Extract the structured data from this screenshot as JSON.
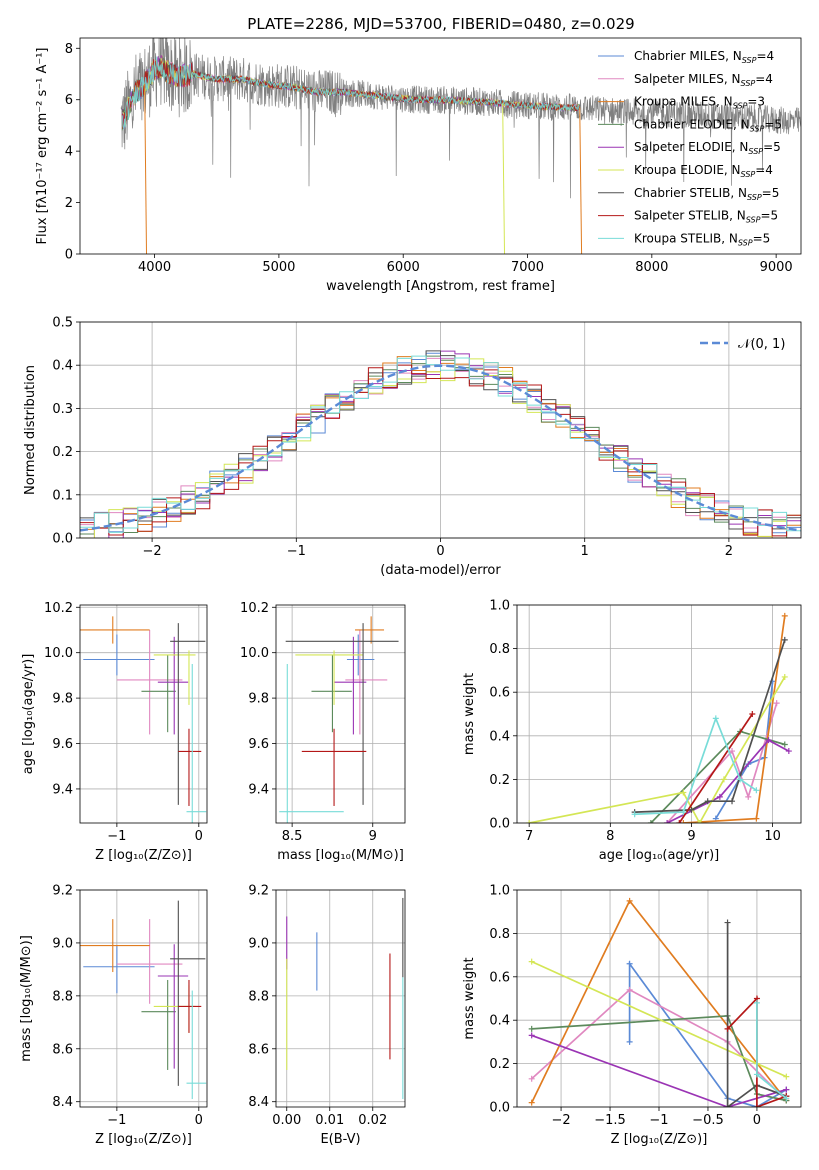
{
  "figure_title": "PLATE=2286, MJD=53700, FIBERID=0480, z=0.029",
  "chart_data": [
    {
      "id": "spectrum",
      "type": "line",
      "xlabel": "wavelength [Angstrom, rest frame]",
      "ylabel": "Flux [fλ10⁻¹⁷ erg cm⁻² s⁻¹ A⁻¹]",
      "xlim": [
        3400,
        9200
      ],
      "ylim": [
        0,
        8.4
      ],
      "xticks": [
        4000,
        5000,
        6000,
        7000,
        8000,
        9000
      ],
      "yticks": [
        0,
        2,
        4,
        6,
        8
      ],
      "grid": false,
      "legend_position": "top-right",
      "data_series_color": "#808080",
      "series": [
        {
          "name": "Chabrier MILES, N_SSP=4",
          "legend": "Chabrier MILES, N",
          "nssp": "4",
          "color": "#5b8ad6"
        },
        {
          "name": "Salpeter MILES, N_SSP=4",
          "legend": "Salpeter MILES, N",
          "nssp": "4",
          "color": "#e088c0"
        },
        {
          "name": "Kroupa MILES, N_SSP=3",
          "legend": "Kroupa MILES, N",
          "nssp": "3",
          "color": "#e07c20"
        },
        {
          "name": "Chabrier ELODIE, N_SSP=5",
          "legend": "Chabrier ELODIE, N",
          "nssp": "5",
          "color": "#5c8a5c"
        },
        {
          "name": "Salpeter ELODIE, N_SSP=5",
          "legend": "Salpeter ELODIE, N",
          "nssp": "5",
          "color": "#9a34b4"
        },
        {
          "name": "Kroupa ELODIE, N_SSP=4",
          "legend": "Kroupa ELODIE, N",
          "nssp": "4",
          "color": "#d4e655"
        },
        {
          "name": "Chabrier STELIB, N_SSP=5",
          "legend": "Chabrier STELIB, N",
          "nssp": "5",
          "color": "#505050"
        },
        {
          "name": "Salpeter STELIB, N_SSP=5",
          "legend": "Salpeter STELIB, N",
          "nssp": "5",
          "color": "#b41818"
        },
        {
          "name": "Kroupa STELIB, N_SSP=5",
          "legend": "Kroupa STELIB, N",
          "nssp": "5",
          "color": "#78dcd8"
        }
      ],
      "continuum": {
        "wavelength": [
          3750,
          3800,
          3850,
          3900,
          3950,
          4000,
          4050,
          4100,
          4200,
          4300,
          4400,
          4500,
          4700,
          4900,
          5100,
          5300,
          5500,
          5700,
          5900,
          6100,
          6300,
          6500,
          6700,
          6900,
          7100,
          7300,
          7420
        ],
        "flux": [
          5.2,
          5.8,
          6.3,
          6.5,
          6.8,
          7.2,
          7.3,
          7.1,
          6.9,
          7.0,
          6.9,
          6.8,
          6.8,
          6.6,
          6.5,
          6.3,
          6.3,
          6.2,
          6.1,
          6.0,
          6.0,
          5.95,
          5.9,
          5.8,
          5.75,
          5.7,
          5.7
        ]
      },
      "data_extension": {
        "wavelength": [
          7420,
          7600,
          7800,
          8000,
          8200,
          8400,
          8600,
          8800,
          9000,
          9200
        ],
        "flux": [
          5.75,
          5.6,
          5.5,
          5.5,
          5.45,
          5.4,
          5.35,
          5.3,
          5.2,
          5.15
        ]
      },
      "model_dips": [
        {
          "series": "Kroupa MILES, N_SSP=3",
          "x": 3920,
          "y": 0
        },
        {
          "series": "Kroupa ELODIE, N_SSP=4",
          "x": 6800,
          "y": 0
        },
        {
          "series": "Kroupa MILES, N_SSP=3",
          "x": 7420,
          "y": 0
        }
      ]
    },
    {
      "id": "residuals",
      "type": "step",
      "xlabel": "(data-model)/error",
      "ylabel": "Normed distribution",
      "xlim": [
        -2.5,
        2.5
      ],
      "ylim": [
        0,
        0.5
      ],
      "xticks": [
        -2,
        -1,
        0,
        1,
        2
      ],
      "yticks": [
        0.0,
        0.1,
        0.2,
        0.3,
        0.4,
        0.5
      ],
      "grid": true,
      "bin_width": 0.1,
      "legend_position": "top-right",
      "reference_curve": {
        "name": "N(0,1)",
        "legend_math": "𝒩(0, 1)",
        "type": "gaussian",
        "mean": 0,
        "sigma": 1,
        "color": "#5b8ad6"
      }
    },
    {
      "id": "age-vs-Z",
      "type": "errorbar",
      "xlabel": "Z [log₁₀(Z/Z⊙)]",
      "ylabel": "age  [log₁₀(age/yr)]",
      "xlim": [
        -1.45,
        0.1
      ],
      "ylim": [
        9.25,
        10.21
      ],
      "xticks": [
        -1,
        0
      ],
      "yticks": [
        9.4,
        9.6,
        9.8,
        10.0,
        10.2
      ],
      "grid": true,
      "points": [
        {
          "x": -1.0,
          "y": 9.97,
          "xerr": [
            0.41,
            0.46
          ],
          "yerr": [
            0.07,
            0.11
          ],
          "color": "#5b8ad6"
        },
        {
          "x": -0.6,
          "y": 9.88,
          "xerr": [
            0.4,
            0.4
          ],
          "yerr": [
            0.24,
            0.22
          ],
          "color": "#e088c0"
        },
        {
          "x": -1.05,
          "y": 10.1,
          "xerr": [
            0.4,
            0.45
          ],
          "yerr": [
            0.06,
            0.06
          ],
          "color": "#e07c20"
        },
        {
          "x": -0.38,
          "y": 9.83,
          "xerr": [
            0.32,
            0.1
          ],
          "yerr": [
            0.18,
            0.16
          ],
          "color": "#5c8a5c"
        },
        {
          "x": -0.3,
          "y": 9.87,
          "xerr": [
            0.2,
            0.17
          ],
          "yerr": [
            0.23,
            0.2
          ],
          "color": "#9a34b4"
        },
        {
          "x": -0.12,
          "y": 9.99,
          "xerr": [
            0.43,
            0.08
          ],
          "yerr": [
            0.22,
            0.02
          ],
          "color": "#d4e655"
        },
        {
          "x": -0.25,
          "y": 10.05,
          "xerr": [
            0.1,
            0.33
          ],
          "yerr": [
            0.72,
            0.08
          ],
          "color": "#505050"
        },
        {
          "x": -0.12,
          "y": 9.565,
          "xerr": [
            0.13,
            0.15
          ],
          "yerr": [
            0.24,
            0.1
          ],
          "color": "#b41818"
        },
        {
          "x": -0.08,
          "y": 9.3,
          "xerr": [
            0.07,
            0.17
          ],
          "yerr": [
            0.05,
            0.65
          ],
          "color": "#78dcd8"
        }
      ]
    },
    {
      "id": "age-vs-mass",
      "type": "errorbar",
      "xlabel": "mass [log₁₀(M/M⊙)]",
      "ylabel": "",
      "xlim": [
        8.4,
        9.2
      ],
      "ylim": [
        9.25,
        10.21
      ],
      "xticks": [
        8.5,
        9.0
      ],
      "yticks": [
        9.4,
        9.6,
        9.8,
        10.0,
        10.2
      ],
      "grid": true,
      "points": [
        {
          "x": 8.91,
          "y": 9.97,
          "xerr": [
            0.07,
            0.1
          ],
          "yerr": [
            0.07,
            0.11
          ],
          "color": "#5b8ad6"
        },
        {
          "x": 8.92,
          "y": 9.88,
          "xerr": [
            0.09,
            0.17
          ],
          "yerr": [
            0.24,
            0.22
          ],
          "color": "#e088c0"
        },
        {
          "x": 8.99,
          "y": 10.1,
          "xerr": [
            0.1,
            0.08
          ],
          "yerr": [
            0.06,
            0.06
          ],
          "color": "#e07c20"
        },
        {
          "x": 8.75,
          "y": 9.83,
          "xerr": [
            0.13,
            0.12
          ],
          "yerr": [
            0.18,
            0.16
          ],
          "color": "#5c8a5c"
        },
        {
          "x": 8.88,
          "y": 9.87,
          "xerr": [
            0.12,
            0.08
          ],
          "yerr": [
            0.23,
            0.2
          ],
          "color": "#9a34b4"
        },
        {
          "x": 8.76,
          "y": 9.99,
          "xerr": [
            0.24,
            0.18
          ],
          "yerr": [
            0.22,
            0.02
          ],
          "color": "#d4e655"
        },
        {
          "x": 8.94,
          "y": 10.05,
          "xerr": [
            0.48,
            0.22
          ],
          "yerr": [
            0.72,
            0.08
          ],
          "color": "#505050"
        },
        {
          "x": 8.76,
          "y": 9.565,
          "xerr": [
            0.2,
            0.2
          ],
          "yerr": [
            0.24,
            0.1
          ],
          "color": "#b41818"
        },
        {
          "x": 8.47,
          "y": 9.3,
          "xerr": [
            0.05,
            0.35
          ],
          "yerr": [
            0.05,
            0.65
          ],
          "color": "#78dcd8"
        }
      ]
    },
    {
      "id": "weight-vs-age",
      "type": "line",
      "xlabel": "age  [log₁₀(age/yr)]",
      "ylabel": "mass weight",
      "xlim": [
        6.85,
        10.35
      ],
      "ylim": [
        0,
        1.0
      ],
      "xticks": [
        7,
        8,
        9,
        10
      ],
      "yticks": [
        0.0,
        0.2,
        0.4,
        0.6,
        0.8,
        1.0
      ],
      "grid": true,
      "series": [
        {
          "color": "#5b8ad6",
          "x": [
            9.3,
            9.7,
            9.9,
            10.0
          ],
          "y": [
            0.02,
            0.27,
            0.3,
            0.65
          ]
        },
        {
          "color": "#e088c0",
          "x": [
            8.7,
            9.5,
            9.7,
            10.05
          ],
          "y": [
            0.0,
            0.33,
            0.12,
            0.55
          ]
        },
        {
          "color": "#e07c20",
          "x": [
            8.9,
            9.8,
            10.15
          ],
          "y": [
            0.0,
            0.02,
            0.95
          ]
        },
        {
          "color": "#5c8a5c",
          "x": [
            8.5,
            9.6,
            10.15
          ],
          "y": [
            0.0,
            0.42,
            0.36
          ]
        },
        {
          "color": "#9a34b4",
          "x": [
            8.7,
            9.35,
            9.95,
            10.2
          ],
          "y": [
            0.0,
            0.12,
            0.38,
            0.33
          ]
        },
        {
          "color": "#d4e655",
          "x": [
            7.0,
            8.9,
            9.1,
            9.4,
            10.15
          ],
          "y": [
            0.0,
            0.14,
            0.0,
            0.2,
            0.67
          ]
        },
        {
          "color": "#505050",
          "x": [
            8.3,
            9.0,
            9.2,
            9.5,
            10.15
          ],
          "y": [
            0.05,
            0.06,
            0.1,
            0.1,
            0.84
          ]
        },
        {
          "color": "#b41818",
          "x": [
            8.85,
            9.75
          ],
          "y": [
            0.0,
            0.5
          ]
        },
        {
          "color": "#78dcd8",
          "x": [
            8.3,
            8.9,
            9.3,
            9.6,
            9.8
          ],
          "y": [
            0.04,
            0.05,
            0.48,
            0.2,
            0.15
          ]
        }
      ]
    },
    {
      "id": "mass-vs-Z",
      "type": "errorbar",
      "xlabel": "Z [log₁₀(Z/Z⊙)]",
      "ylabel": "mass [log₁₀(M/M⊙)]",
      "xlim": [
        -1.45,
        0.1
      ],
      "ylim": [
        8.38,
        9.2
      ],
      "xticks": [
        -1,
        0
      ],
      "yticks": [
        8.4,
        8.6,
        8.8,
        9.0,
        9.2
      ],
      "grid": true,
      "points": [
        {
          "x": -1.0,
          "y": 8.91,
          "xerr": [
            0.41,
            0.46
          ],
          "yerr": [
            0.1,
            0.08
          ],
          "color": "#5b8ad6"
        },
        {
          "x": -0.6,
          "y": 8.92,
          "xerr": [
            0.4,
            0.4
          ],
          "yerr": [
            0.15,
            0.17
          ],
          "color": "#e088c0"
        },
        {
          "x": -1.05,
          "y": 8.99,
          "xerr": [
            0.4,
            0.45
          ],
          "yerr": [
            0.1,
            0.1
          ],
          "color": "#e07c20"
        },
        {
          "x": -0.38,
          "y": 8.74,
          "xerr": [
            0.32,
            0.1
          ],
          "yerr": [
            0.22,
            0.12
          ],
          "color": "#5c8a5c"
        },
        {
          "x": -0.3,
          "y": 8.875,
          "xerr": [
            0.2,
            0.17
          ],
          "yerr": [
            0.35,
            0.12
          ],
          "color": "#9a34b4"
        },
        {
          "x": -0.12,
          "y": 8.76,
          "xerr": [
            0.43,
            0.08
          ],
          "yerr": [
            0.1,
            0.08
          ],
          "color": "#d4e655"
        },
        {
          "x": -0.25,
          "y": 8.94,
          "xerr": [
            0.1,
            0.33
          ],
          "yerr": [
            0.48,
            0.22
          ],
          "color": "#505050"
        },
        {
          "x": -0.12,
          "y": 8.76,
          "xerr": [
            0.13,
            0.15
          ],
          "yerr": [
            0.1,
            0.1
          ],
          "color": "#b41818"
        },
        {
          "x": -0.08,
          "y": 8.47,
          "xerr": [
            0.07,
            0.17
          ],
          "yerr": [
            0.06,
            0.35
          ],
          "color": "#78dcd8"
        }
      ]
    },
    {
      "id": "mass-vs-ebv",
      "type": "errorbar",
      "xlabel": "E(B-V)",
      "ylabel": "",
      "xlim": [
        -0.0025,
        0.0275
      ],
      "ylim": [
        8.38,
        9.2
      ],
      "xticks": [
        0.0,
        0.01,
        0.02
      ],
      "xtick_labels": [
        "0.00",
        "0.01",
        "0.02"
      ],
      "yticks": [
        8.4,
        8.6,
        8.8,
        9.0,
        9.2
      ],
      "grid": true,
      "points": [
        {
          "x": 0.007,
          "y": 8.93,
          "xerr": [
            0,
            0
          ],
          "yerr": [
            0.11,
            0.11
          ],
          "color": "#5b8ad6"
        },
        {
          "x": 0.0,
          "y": 9.0,
          "xerr": [
            0,
            0
          ],
          "yerr": [
            0.1,
            0.1
          ],
          "color": "#9a34b4"
        },
        {
          "x": 0.0,
          "y": 8.73,
          "xerr": [
            0,
            0
          ],
          "yerr": [
            0.21,
            0.21
          ],
          "color": "#d4e655"
        },
        {
          "x": 0.027,
          "y": 9.02,
          "xerr": [
            0,
            0
          ],
          "yerr": [
            0.15,
            0.15
          ],
          "color": "#505050"
        },
        {
          "x": 0.024,
          "y": 8.76,
          "xerr": [
            0,
            0
          ],
          "yerr": [
            0.2,
            0.2
          ],
          "color": "#b41818"
        },
        {
          "x": 0.027,
          "y": 8.64,
          "xerr": [
            0,
            0
          ],
          "yerr": [
            0.23,
            0.23
          ],
          "color": "#78dcd8"
        }
      ]
    },
    {
      "id": "weight-vs-Z",
      "type": "line",
      "xlabel": "Z [log₁₀(Z/Z⊙)]",
      "ylabel": "mass weight",
      "xlim": [
        -2.45,
        0.45
      ],
      "ylim": [
        0,
        1.0
      ],
      "xticks": [
        -2.0,
        -1.5,
        -1.0,
        -0.5,
        0.0
      ],
      "yticks": [
        0.0,
        0.2,
        0.4,
        0.6,
        0.8,
        1.0
      ],
      "grid": true,
      "series": [
        {
          "color": "#5b8ad6",
          "x": [
            -1.3,
            -1.3,
            -0.3,
            0.0,
            0.3
          ],
          "y": [
            0.3,
            0.66,
            0.04,
            0.0,
            0.08
          ]
        },
        {
          "color": "#e088c0",
          "x": [
            -2.3,
            -1.3,
            -0.3,
            0.3
          ],
          "y": [
            0.13,
            0.54,
            0.3,
            0.03
          ]
        },
        {
          "color": "#e07c20",
          "x": [
            -2.3,
            -1.3,
            0.3
          ],
          "y": [
            0.02,
            0.95,
            0.03
          ]
        },
        {
          "color": "#5c8a5c",
          "x": [
            -2.3,
            -0.3,
            0.0,
            0.3
          ],
          "y": [
            0.36,
            0.42,
            0.06,
            0.03
          ]
        },
        {
          "color": "#9a34b4",
          "x": [
            -2.3,
            -0.3,
            0.3
          ],
          "y": [
            0.33,
            0.0,
            0.08
          ]
        },
        {
          "color": "#d4e655",
          "x": [
            -2.3,
            0.0,
            0.3
          ],
          "y": [
            0.67,
            0.2,
            0.14
          ]
        },
        {
          "color": "#505050",
          "x": [
            -0.3,
            -0.3,
            0.0,
            0.3
          ],
          "y": [
            0.85,
            0.0,
            0.1,
            0.05
          ]
        },
        {
          "color": "#b41818",
          "x": [
            -0.3,
            0.0,
            0.0,
            0.3
          ],
          "y": [
            0.36,
            0.5,
            0.0,
            0.05
          ]
        },
        {
          "color": "#78dcd8",
          "x": [
            0.0,
            0.0,
            0.3
          ],
          "y": [
            0.48,
            0.15,
            0.04
          ]
        }
      ]
    }
  ]
}
